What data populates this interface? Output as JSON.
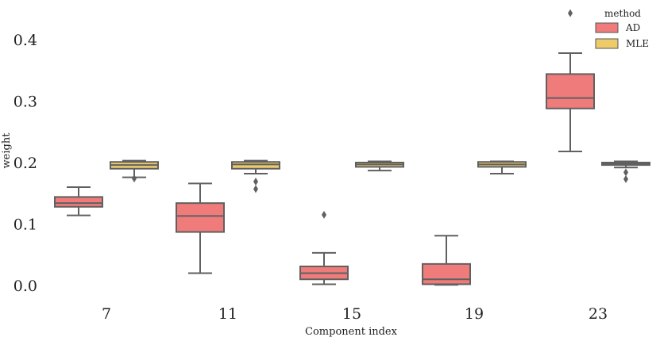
{
  "chart_data": {
    "type": "box",
    "xlabel": "Component index",
    "ylabel": "weight",
    "ylim": [
      -0.02,
      0.44
    ],
    "yticks": [
      "0.0",
      "0.1",
      "0.2",
      "0.3",
      "0.4"
    ],
    "categories": [
      "7",
      "11",
      "15",
      "19",
      "23"
    ],
    "grid": false,
    "legend": {
      "title": "method",
      "placement": "top-right"
    },
    "series": [
      {
        "name": "AD",
        "color": "#F07B7B",
        "boxes": [
          {
            "whislo": 0.114,
            "q1": 0.128,
            "med": 0.134,
            "q3": 0.144,
            "whishi": 0.16,
            "fliers": []
          },
          {
            "whislo": 0.02,
            "q1": 0.087,
            "med": 0.113,
            "q3": 0.134,
            "whishi": 0.166,
            "fliers": []
          },
          {
            "whislo": 0.002,
            "q1": 0.01,
            "med": 0.02,
            "q3": 0.031,
            "whishi": 0.053,
            "fliers": [
              0.115
            ]
          },
          {
            "whislo": 0.001,
            "q1": 0.002,
            "med": 0.01,
            "q3": 0.035,
            "whishi": 0.081,
            "fliers": []
          },
          {
            "whislo": 0.218,
            "q1": 0.288,
            "med": 0.305,
            "q3": 0.344,
            "whishi": 0.378,
            "fliers": [
              0.443
            ]
          }
        ]
      },
      {
        "name": "MLE",
        "color": "#EDCB6A",
        "boxes": [
          {
            "whislo": 0.176,
            "q1": 0.19,
            "med": 0.196,
            "q3": 0.201,
            "whishi": 0.203,
            "fliers": [
              0.174
            ]
          },
          {
            "whislo": 0.182,
            "q1": 0.19,
            "med": 0.197,
            "q3": 0.201,
            "whishi": 0.203,
            "fliers": [
              0.169,
              0.157
            ]
          },
          {
            "whislo": 0.187,
            "q1": 0.193,
            "med": 0.197,
            "q3": 0.2,
            "whishi": 0.202,
            "fliers": []
          },
          {
            "whislo": 0.182,
            "q1": 0.193,
            "med": 0.197,
            "q3": 0.201,
            "whishi": 0.202,
            "fliers": []
          },
          {
            "whislo": 0.192,
            "q1": 0.196,
            "med": 0.198,
            "q3": 0.2,
            "whishi": 0.202,
            "fliers": [
              0.184,
              0.173
            ]
          }
        ]
      }
    ]
  }
}
